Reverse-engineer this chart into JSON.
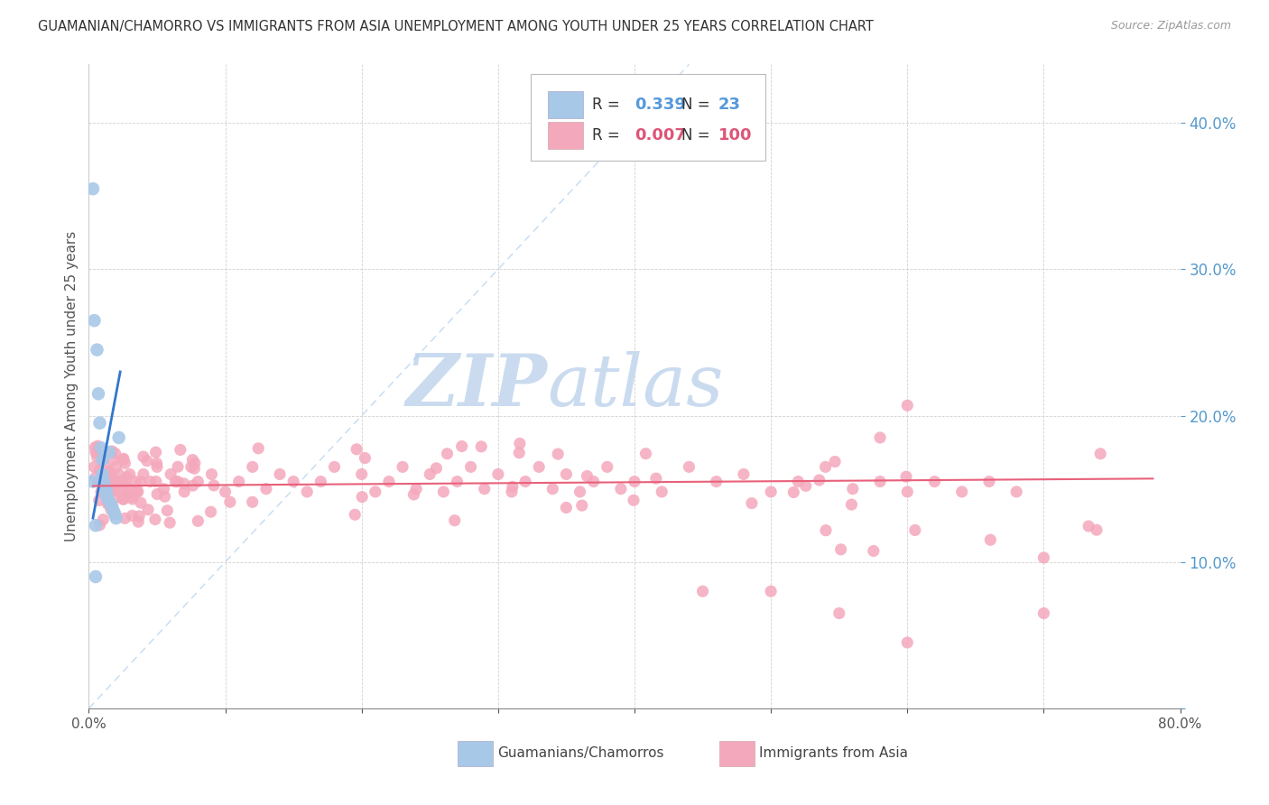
{
  "title": "GUAMANIAN/CHAMORRO VS IMMIGRANTS FROM ASIA UNEMPLOYMENT AMONG YOUTH UNDER 25 YEARS CORRELATION CHART",
  "source": "Source: ZipAtlas.com",
  "ylabel": "Unemployment Among Youth under 25 years",
  "xlim": [
    0.0,
    0.8
  ],
  "ylim": [
    0.0,
    0.44
  ],
  "blue_R": 0.339,
  "blue_N": 23,
  "pink_R": 0.007,
  "pink_N": 100,
  "blue_x": [
    0.003,
    0.003,
    0.004,
    0.005,
    0.006,
    0.007,
    0.008,
    0.009,
    0.01,
    0.01,
    0.011,
    0.012,
    0.013,
    0.013,
    0.014,
    0.015,
    0.016,
    0.017,
    0.018,
    0.019,
    0.02,
    0.022,
    0.005
  ],
  "blue_y": [
    0.355,
    0.155,
    0.265,
    0.09,
    0.245,
    0.215,
    0.195,
    0.178,
    0.17,
    0.16,
    0.155,
    0.15,
    0.148,
    0.145,
    0.143,
    0.175,
    0.14,
    0.138,
    0.135,
    0.133,
    0.13,
    0.185,
    0.125
  ],
  "pink_x": [
    0.004,
    0.005,
    0.006,
    0.007,
    0.008,
    0.009,
    0.01,
    0.011,
    0.012,
    0.013,
    0.014,
    0.015,
    0.016,
    0.017,
    0.018,
    0.019,
    0.02,
    0.021,
    0.022,
    0.023,
    0.024,
    0.025,
    0.026,
    0.027,
    0.028,
    0.029,
    0.03,
    0.032,
    0.034,
    0.036,
    0.038,
    0.04,
    0.005,
    0.008,
    0.012,
    0.015,
    0.018,
    0.022,
    0.025,
    0.03,
    0.035,
    0.04,
    0.045,
    0.05,
    0.055,
    0.06,
    0.065,
    0.07,
    0.075,
    0.08,
    0.09,
    0.1,
    0.11,
    0.12,
    0.13,
    0.14,
    0.15,
    0.16,
    0.17,
    0.18,
    0.2,
    0.21,
    0.22,
    0.23,
    0.24,
    0.25,
    0.26,
    0.27,
    0.28,
    0.29,
    0.3,
    0.31,
    0.32,
    0.33,
    0.34,
    0.35,
    0.36,
    0.37,
    0.38,
    0.39,
    0.4,
    0.42,
    0.44,
    0.46,
    0.48,
    0.5,
    0.52,
    0.54,
    0.56,
    0.58,
    0.6,
    0.62,
    0.64,
    0.66,
    0.68,
    0.7,
    0.6,
    0.58,
    0.5,
    0.7
  ],
  "pink_y": [
    0.165,
    0.158,
    0.172,
    0.155,
    0.163,
    0.148,
    0.17,
    0.155,
    0.16,
    0.145,
    0.155,
    0.162,
    0.148,
    0.155,
    0.143,
    0.15,
    0.165,
    0.155,
    0.16,
    0.148,
    0.155,
    0.17,
    0.145,
    0.152,
    0.158,
    0.145,
    0.15,
    0.143,
    0.155,
    0.148,
    0.155,
    0.16,
    0.175,
    0.155,
    0.165,
    0.148,
    0.17,
    0.155,
    0.143,
    0.16,
    0.148,
    0.172,
    0.155,
    0.165,
    0.15,
    0.16,
    0.155,
    0.148,
    0.165,
    0.155,
    0.16,
    0.148,
    0.155,
    0.165,
    0.15,
    0.16,
    0.155,
    0.148,
    0.155,
    0.165,
    0.16,
    0.148,
    0.155,
    0.165,
    0.15,
    0.16,
    0.148,
    0.155,
    0.165,
    0.15,
    0.16,
    0.148,
    0.155,
    0.165,
    0.15,
    0.16,
    0.148,
    0.155,
    0.165,
    0.15,
    0.155,
    0.148,
    0.165,
    0.155,
    0.16,
    0.148,
    0.155,
    0.165,
    0.15,
    0.155,
    0.148,
    0.155,
    0.148,
    0.155,
    0.148,
    0.103,
    0.207,
    0.185,
    0.08,
    0.065
  ],
  "blue_color": "#a8c8e8",
  "pink_color": "#f4a8bc",
  "blue_line_color": "#3377cc",
  "pink_line_color": "#e8607a",
  "bg_color": "#ffffff",
  "grid_color": "#cccccc",
  "legend_color_blue": "#a8c8e8",
  "legend_color_pink": "#f4a8bc",
  "legend_R_color_blue": "#5599dd",
  "legend_R_color_pink": "#dd5577",
  "legend_N_color_blue": "#5599dd",
  "legend_N_color_pink": "#dd5577",
  "watermark_zip_color": "#c5d8ee",
  "watermark_atlas_color": "#c5d8ee"
}
